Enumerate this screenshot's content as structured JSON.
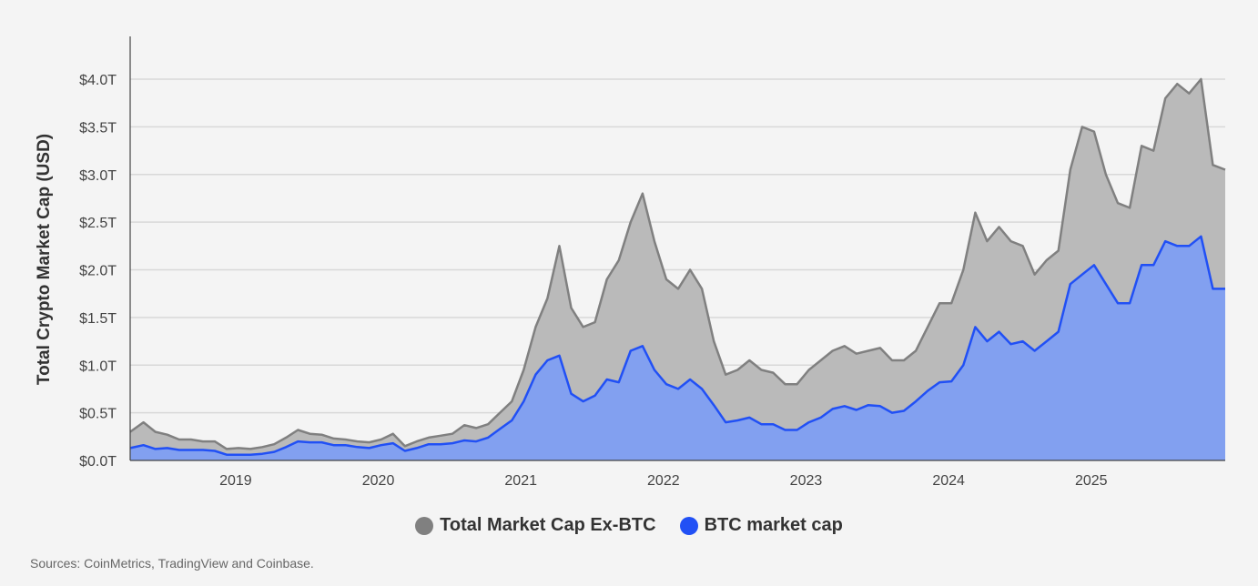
{
  "chart_data": {
    "type": "area",
    "stacked": true,
    "title": "",
    "ylabel": "Total Crypto Market Cap (USD)",
    "xlabel": "",
    "ylim": [
      0,
      4.4
    ],
    "y_ticks": [
      0,
      0.5,
      1.0,
      1.5,
      2.0,
      2.5,
      3.0,
      3.5,
      4.0
    ],
    "y_tick_labels": [
      "$0.0T",
      "$0.5T",
      "$1.0T",
      "$1.5T",
      "$2.0T",
      "$2.5T",
      "$3.0T",
      "$3.5T",
      "$4.0T"
    ],
    "x_tick_labels": [
      "2019",
      "2020",
      "2021",
      "2022",
      "2023",
      "2024",
      "2025"
    ],
    "xlim": [
      "2018-04",
      "2025-12"
    ],
    "grid": "horizontal",
    "legend_position": "bottom",
    "unit": "USD trillions",
    "x": [
      "2018-04",
      "2018-05",
      "2018-06",
      "2018-07",
      "2018-08",
      "2018-09",
      "2018-10",
      "2018-11",
      "2018-12",
      "2019-01",
      "2019-02",
      "2019-03",
      "2019-04",
      "2019-05",
      "2019-06",
      "2019-07",
      "2019-08",
      "2019-09",
      "2019-10",
      "2019-11",
      "2019-12",
      "2020-01",
      "2020-02",
      "2020-03",
      "2020-04",
      "2020-05",
      "2020-06",
      "2020-07",
      "2020-08",
      "2020-09",
      "2020-10",
      "2020-11",
      "2020-12",
      "2021-01",
      "2021-02",
      "2021-03",
      "2021-04",
      "2021-05",
      "2021-06",
      "2021-07",
      "2021-08",
      "2021-09",
      "2021-10",
      "2021-11",
      "2021-12",
      "2022-01",
      "2022-02",
      "2022-03",
      "2022-04",
      "2022-05",
      "2022-06",
      "2022-07",
      "2022-08",
      "2022-09",
      "2022-10",
      "2022-11",
      "2022-12",
      "2023-01",
      "2023-02",
      "2023-03",
      "2023-04",
      "2023-05",
      "2023-06",
      "2023-07",
      "2023-08",
      "2023-09",
      "2023-10",
      "2023-11",
      "2023-12",
      "2024-01",
      "2024-02",
      "2024-03",
      "2024-04",
      "2024-05",
      "2024-06",
      "2024-07",
      "2024-08",
      "2024-09",
      "2024-10",
      "2024-11",
      "2024-12",
      "2025-01",
      "2025-02",
      "2025-03",
      "2025-04",
      "2025-05",
      "2025-06",
      "2025-07",
      "2025-08",
      "2025-09",
      "2025-10",
      "2025-11",
      "2025-12"
    ],
    "series": [
      {
        "name": "BTC market cap",
        "color": "#2150f5",
        "fill": "#82a0f0",
        "values": [
          0.13,
          0.16,
          0.12,
          0.13,
          0.11,
          0.11,
          0.11,
          0.1,
          0.06,
          0.06,
          0.06,
          0.07,
          0.09,
          0.14,
          0.2,
          0.19,
          0.19,
          0.16,
          0.16,
          0.14,
          0.13,
          0.16,
          0.18,
          0.1,
          0.13,
          0.17,
          0.17,
          0.18,
          0.21,
          0.2,
          0.24,
          0.33,
          0.42,
          0.62,
          0.9,
          1.05,
          1.1,
          0.7,
          0.62,
          0.68,
          0.85,
          0.82,
          1.15,
          1.2,
          0.95,
          0.8,
          0.75,
          0.85,
          0.75,
          0.58,
          0.4,
          0.42,
          0.45,
          0.38,
          0.38,
          0.32,
          0.32,
          0.4,
          0.45,
          0.54,
          0.57,
          0.53,
          0.58,
          0.57,
          0.5,
          0.52,
          0.62,
          0.73,
          0.82,
          0.83,
          1.0,
          1.4,
          1.25,
          1.35,
          1.22,
          1.25,
          1.15,
          1.25,
          1.35,
          1.85,
          1.95,
          2.05,
          1.85,
          1.65,
          1.65,
          2.05,
          2.05,
          2.3,
          2.25,
          2.25,
          2.35,
          1.8,
          1.8
        ]
      },
      {
        "name": "Total Market Cap Ex-BTC",
        "color": "#808080",
        "fill": "#bababa",
        "values": [
          0.17,
          0.24,
          0.18,
          0.14,
          0.11,
          0.11,
          0.09,
          0.1,
          0.06,
          0.07,
          0.06,
          0.07,
          0.08,
          0.1,
          0.12,
          0.09,
          0.08,
          0.07,
          0.06,
          0.06,
          0.06,
          0.06,
          0.1,
          0.05,
          0.07,
          0.07,
          0.09,
          0.1,
          0.16,
          0.14,
          0.14,
          0.17,
          0.2,
          0.33,
          0.5,
          0.65,
          1.15,
          0.9,
          0.78,
          0.77,
          1.05,
          1.28,
          1.35,
          1.6,
          1.35,
          1.1,
          1.05,
          1.15,
          1.05,
          0.67,
          0.5,
          0.53,
          0.6,
          0.57,
          0.54,
          0.48,
          0.48,
          0.55,
          0.6,
          0.61,
          0.63,
          0.59,
          0.57,
          0.61,
          0.55,
          0.53,
          0.53,
          0.67,
          0.83,
          0.82,
          1.0,
          1.2,
          1.05,
          1.1,
          1.08,
          1.0,
          0.8,
          0.85,
          0.85,
          1.2,
          1.55,
          1.4,
          1.15,
          1.05,
          1.0,
          1.25,
          1.2,
          1.5,
          1.7,
          1.6,
          1.65,
          1.3,
          1.25
        ]
      }
    ]
  },
  "legend": {
    "items": [
      {
        "label": "Total Market Cap Ex-BTC",
        "color": "#808080"
      },
      {
        "label": "BTC market cap",
        "color": "#2150f5"
      }
    ]
  },
  "source": "Sources: CoinMetrics, TradingView and Coinbase."
}
